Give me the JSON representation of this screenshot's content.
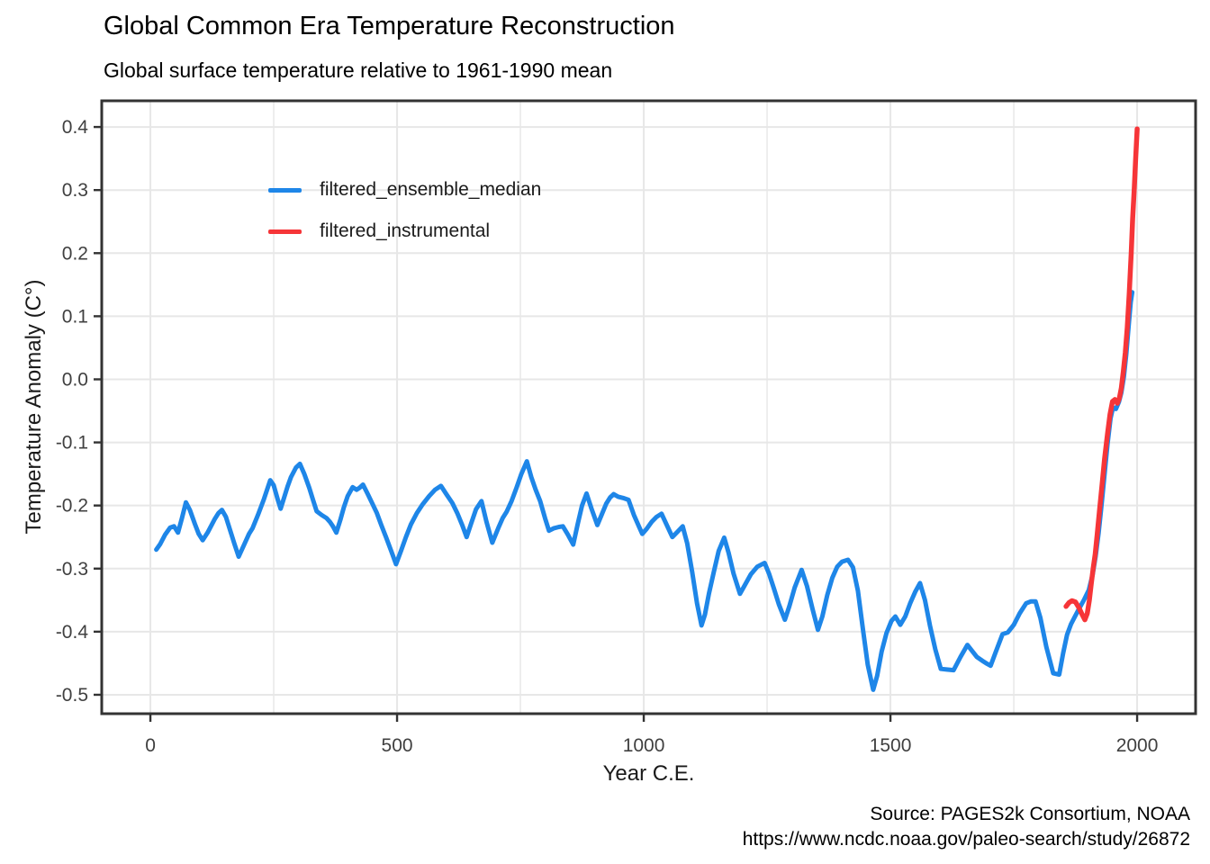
{
  "title": "Global Common Era Temperature Reconstruction",
  "subtitle": "Global surface temperature relative to 1961-1990 mean",
  "caption": {
    "line1": "Source: PAGES2k Consortium, NOAA",
    "line2": "https://www.ncdc.noaa.gov/paleo-search/study/26872"
  },
  "chart_data": {
    "type": "line",
    "title": "Global Common Era Temperature Reconstruction",
    "subtitle": "Global surface temperature relative to 1961-1990 mean",
    "xlabel": "Year C.E.",
    "ylabel": "Temperature Anomaly (C°)",
    "xlim": [
      -98.6,
      2118.5
    ],
    "ylim": [
      -0.53,
      0.4415
    ],
    "grid": "x-major, x-minor(250yr), y-major only; light gray on white; dark panel border",
    "legend_position": "inside top-left",
    "x_ticks": [
      {
        "v": 0,
        "label": "0"
      },
      {
        "v": 500,
        "label": "500"
      },
      {
        "v": 1000,
        "label": "1000"
      },
      {
        "v": 1500,
        "label": "1500"
      },
      {
        "v": 2000,
        "label": "2000"
      }
    ],
    "x_minor": [
      250,
      750,
      1250,
      1750
    ],
    "y_ticks": [
      {
        "v": 0.4,
        "label": "0.4"
      },
      {
        "v": 0.3,
        "label": "0.3"
      },
      {
        "v": 0.2,
        "label": "0.2"
      },
      {
        "v": 0.1,
        "label": "0.1"
      },
      {
        "v": 0.0,
        "label": "0.0"
      },
      {
        "v": -0.1,
        "label": "-0.1"
      },
      {
        "v": -0.2,
        "label": "-0.2"
      },
      {
        "v": -0.3,
        "label": "-0.3"
      },
      {
        "v": -0.4,
        "label": "-0.4"
      },
      {
        "v": -0.5,
        "label": "-0.5"
      }
    ],
    "theme_colors": {
      "grid": "#E7E7E7",
      "grid_minor": "#ECECEC",
      "panel_border": "#333333",
      "tick_mark": "#333333",
      "axis_text": "#404040",
      "text": "#1a1a1a"
    },
    "series": [
      {
        "name": "filtered_ensemble_median",
        "color": "#1E86E8",
        "width": 5,
        "points": [
          [
            12,
            -0.27
          ],
          [
            20,
            -0.261
          ],
          [
            30,
            -0.246
          ],
          [
            40,
            -0.235
          ],
          [
            48,
            -0.233
          ],
          [
            56,
            -0.243
          ],
          [
            64,
            -0.22
          ],
          [
            72,
            -0.195
          ],
          [
            80,
            -0.207
          ],
          [
            90,
            -0.229
          ],
          [
            98,
            -0.245
          ],
          [
            106,
            -0.255
          ],
          [
            116,
            -0.243
          ],
          [
            130,
            -0.222
          ],
          [
            138,
            -0.212
          ],
          [
            145,
            -0.207
          ],
          [
            153,
            -0.218
          ],
          [
            162,
            -0.24
          ],
          [
            170,
            -0.26
          ],
          [
            179,
            -0.281
          ],
          [
            190,
            -0.262
          ],
          [
            200,
            -0.245
          ],
          [
            207,
            -0.236
          ],
          [
            218,
            -0.215
          ],
          [
            230,
            -0.19
          ],
          [
            243,
            -0.16
          ],
          [
            250,
            -0.168
          ],
          [
            258,
            -0.19
          ],
          [
            264,
            -0.205
          ],
          [
            270,
            -0.19
          ],
          [
            278,
            -0.17
          ],
          [
            285,
            -0.155
          ],
          [
            295,
            -0.14
          ],
          [
            303,
            -0.134
          ],
          [
            312,
            -0.15
          ],
          [
            322,
            -0.172
          ],
          [
            330,
            -0.192
          ],
          [
            337,
            -0.209
          ],
          [
            347,
            -0.215
          ],
          [
            357,
            -0.22
          ],
          [
            364,
            -0.226
          ],
          [
            370,
            -0.233
          ],
          [
            377,
            -0.243
          ],
          [
            385,
            -0.223
          ],
          [
            392,
            -0.203
          ],
          [
            400,
            -0.185
          ],
          [
            410,
            -0.171
          ],
          [
            418,
            -0.175
          ],
          [
            424,
            -0.172
          ],
          [
            431,
            -0.167
          ],
          [
            440,
            -0.181
          ],
          [
            450,
            -0.197
          ],
          [
            459,
            -0.212
          ],
          [
            468,
            -0.231
          ],
          [
            478,
            -0.251
          ],
          [
            488,
            -0.272
          ],
          [
            498,
            -0.293
          ],
          [
            508,
            -0.272
          ],
          [
            518,
            -0.25
          ],
          [
            528,
            -0.23
          ],
          [
            540,
            -0.212
          ],
          [
            552,
            -0.198
          ],
          [
            565,
            -0.185
          ],
          [
            577,
            -0.175
          ],
          [
            589,
            -0.169
          ],
          [
            600,
            -0.182
          ],
          [
            612,
            -0.196
          ],
          [
            622,
            -0.212
          ],
          [
            632,
            -0.231
          ],
          [
            641,
            -0.25
          ],
          [
            650,
            -0.229
          ],
          [
            660,
            -0.206
          ],
          [
            671,
            -0.193
          ],
          [
            681,
            -0.225
          ],
          [
            693,
            -0.259
          ],
          [
            705,
            -0.236
          ],
          [
            714,
            -0.22
          ],
          [
            722,
            -0.21
          ],
          [
            732,
            -0.193
          ],
          [
            742,
            -0.172
          ],
          [
            752,
            -0.15
          ],
          [
            763,
            -0.13
          ],
          [
            772,
            -0.155
          ],
          [
            781,
            -0.175
          ],
          [
            790,
            -0.193
          ],
          [
            800,
            -0.22
          ],
          [
            808,
            -0.24
          ],
          [
            818,
            -0.236
          ],
          [
            828,
            -0.234
          ],
          [
            836,
            -0.233
          ],
          [
            846,
            -0.246
          ],
          [
            857,
            -0.262
          ],
          [
            866,
            -0.23
          ],
          [
            875,
            -0.2
          ],
          [
            884,
            -0.181
          ],
          [
            894,
            -0.205
          ],
          [
            906,
            -0.231
          ],
          [
            914,
            -0.216
          ],
          [
            924,
            -0.197
          ],
          [
            932,
            -0.187
          ],
          [
            939,
            -0.182
          ],
          [
            948,
            -0.186
          ],
          [
            958,
            -0.188
          ],
          [
            969,
            -0.191
          ],
          [
            980,
            -0.215
          ],
          [
            990,
            -0.233
          ],
          [
            997,
            -0.245
          ],
          [
            1006,
            -0.237
          ],
          [
            1016,
            -0.226
          ],
          [
            1026,
            -0.218
          ],
          [
            1036,
            -0.213
          ],
          [
            1046,
            -0.23
          ],
          [
            1058,
            -0.25
          ],
          [
            1068,
            -0.242
          ],
          [
            1079,
            -0.233
          ],
          [
            1088,
            -0.26
          ],
          [
            1098,
            -0.305
          ],
          [
            1108,
            -0.355
          ],
          [
            1117,
            -0.39
          ],
          [
            1124,
            -0.373
          ],
          [
            1132,
            -0.34
          ],
          [
            1142,
            -0.305
          ],
          [
            1152,
            -0.272
          ],
          [
            1163,
            -0.251
          ],
          [
            1172,
            -0.275
          ],
          [
            1182,
            -0.308
          ],
          [
            1195,
            -0.34
          ],
          [
            1205,
            -0.326
          ],
          [
            1217,
            -0.309
          ],
          [
            1230,
            -0.297
          ],
          [
            1245,
            -0.291
          ],
          [
            1254,
            -0.308
          ],
          [
            1264,
            -0.332
          ],
          [
            1274,
            -0.357
          ],
          [
            1286,
            -0.381
          ],
          [
            1295,
            -0.36
          ],
          [
            1306,
            -0.33
          ],
          [
            1320,
            -0.302
          ],
          [
            1331,
            -0.328
          ],
          [
            1342,
            -0.364
          ],
          [
            1353,
            -0.397
          ],
          [
            1362,
            -0.376
          ],
          [
            1372,
            -0.342
          ],
          [
            1382,
            -0.315
          ],
          [
            1392,
            -0.297
          ],
          [
            1402,
            -0.289
          ],
          [
            1414,
            -0.286
          ],
          [
            1424,
            -0.298
          ],
          [
            1434,
            -0.335
          ],
          [
            1444,
            -0.395
          ],
          [
            1454,
            -0.452
          ],
          [
            1465,
            -0.492
          ],
          [
            1473,
            -0.47
          ],
          [
            1482,
            -0.432
          ],
          [
            1492,
            -0.402
          ],
          [
            1502,
            -0.383
          ],
          [
            1510,
            -0.376
          ],
          [
            1520,
            -0.389
          ],
          [
            1530,
            -0.376
          ],
          [
            1540,
            -0.355
          ],
          [
            1550,
            -0.337
          ],
          [
            1560,
            -0.323
          ],
          [
            1570,
            -0.35
          ],
          [
            1580,
            -0.39
          ],
          [
            1591,
            -0.428
          ],
          [
            1602,
            -0.459
          ],
          [
            1614,
            -0.46
          ],
          [
            1628,
            -0.461
          ],
          [
            1642,
            -0.44
          ],
          [
            1656,
            -0.421
          ],
          [
            1665,
            -0.43
          ],
          [
            1675,
            -0.44
          ],
          [
            1686,
            -0.446
          ],
          [
            1696,
            -0.451
          ],
          [
            1703,
            -0.454
          ],
          [
            1713,
            -0.433
          ],
          [
            1727,
            -0.404
          ],
          [
            1738,
            -0.401
          ],
          [
            1750,
            -0.389
          ],
          [
            1762,
            -0.371
          ],
          [
            1775,
            -0.355
          ],
          [
            1785,
            -0.352
          ],
          [
            1794,
            -0.352
          ],
          [
            1804,
            -0.378
          ],
          [
            1816,
            -0.424
          ],
          [
            1830,
            -0.466
          ],
          [
            1842,
            -0.468
          ],
          [
            1850,
            -0.434
          ],
          [
            1858,
            -0.405
          ],
          [
            1866,
            -0.388
          ],
          [
            1874,
            -0.376
          ],
          [
            1882,
            -0.364
          ],
          [
            1892,
            -0.35
          ],
          [
            1902,
            -0.334
          ],
          [
            1910,
            -0.309
          ],
          [
            1916,
            -0.28
          ],
          [
            1922,
            -0.243
          ],
          [
            1928,
            -0.198
          ],
          [
            1934,
            -0.15
          ],
          [
            1940,
            -0.102
          ],
          [
            1946,
            -0.062
          ],
          [
            1951,
            -0.045
          ],
          [
            1957,
            -0.047
          ],
          [
            1963,
            -0.036
          ],
          [
            1968,
            -0.021
          ],
          [
            1973,
            0.004
          ],
          [
            1978,
            0.04
          ],
          [
            1983,
            0.086
          ],
          [
            1987,
            0.122
          ],
          [
            1990,
            0.138
          ]
        ]
      },
      {
        "name": "filtered_instrumental",
        "color": "#F63538",
        "width": 5.5,
        "points": [
          [
            1856,
            -0.36
          ],
          [
            1862,
            -0.354
          ],
          [
            1868,
            -0.351
          ],
          [
            1875,
            -0.353
          ],
          [
            1882,
            -0.362
          ],
          [
            1888,
            -0.372
          ],
          [
            1894,
            -0.381
          ],
          [
            1899,
            -0.371
          ],
          [
            1903,
            -0.351
          ],
          [
            1907,
            -0.324
          ],
          [
            1911,
            -0.299
          ],
          [
            1915,
            -0.277
          ],
          [
            1919,
            -0.246
          ],
          [
            1924,
            -0.206
          ],
          [
            1929,
            -0.166
          ],
          [
            1934,
            -0.126
          ],
          [
            1940,
            -0.086
          ],
          [
            1945,
            -0.056
          ],
          [
            1950,
            -0.035
          ],
          [
            1955,
            -0.032
          ],
          [
            1960,
            -0.038
          ],
          [
            1964,
            -0.03
          ],
          [
            1968,
            -0.014
          ],
          [
            1972,
            0.012
          ],
          [
            1976,
            0.042
          ],
          [
            1980,
            0.082
          ],
          [
            1984,
            0.136
          ],
          [
            1988,
            0.2
          ],
          [
            1991,
            0.255
          ],
          [
            1994,
            0.3
          ],
          [
            1997,
            0.349
          ],
          [
            2000,
            0.397
          ]
        ]
      }
    ]
  }
}
